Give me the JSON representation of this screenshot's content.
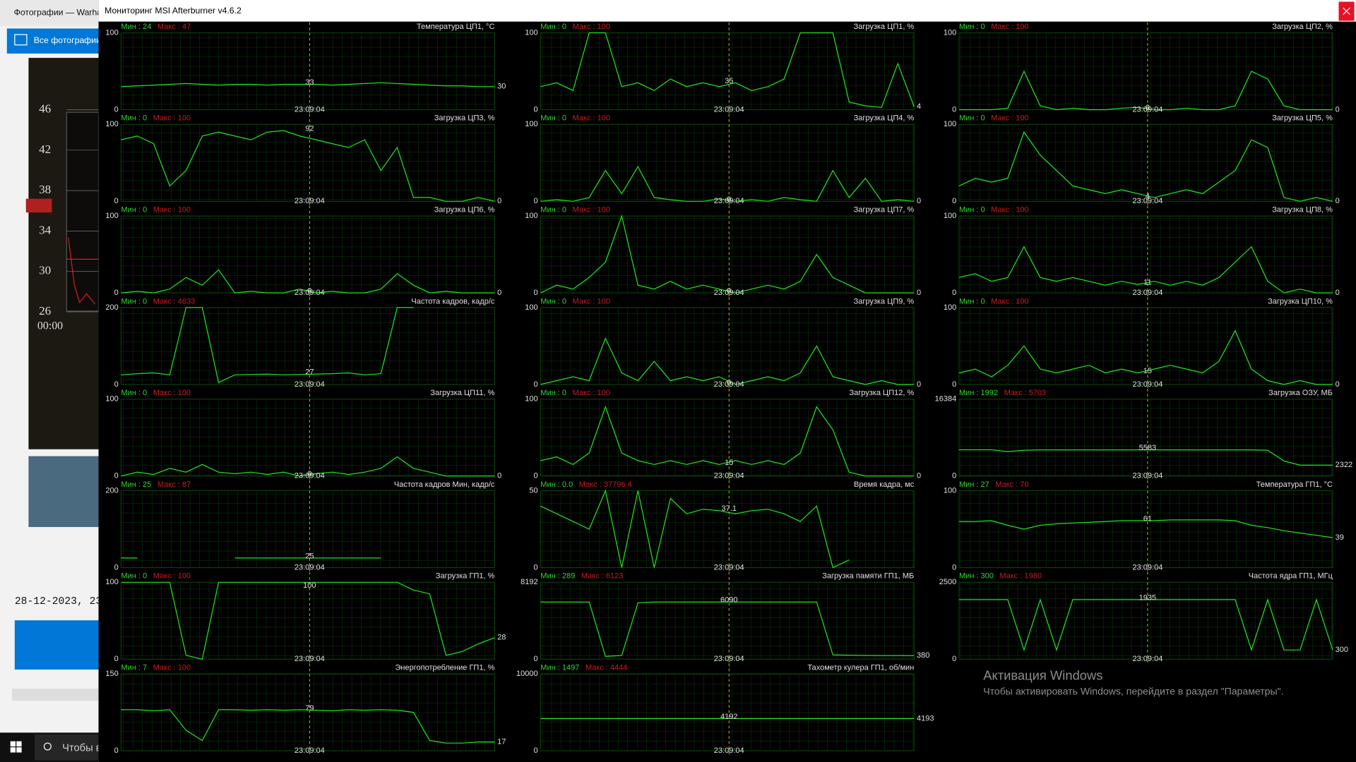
{
  "photos": {
    "window_title": "Фотографии — Warha",
    "nav": "Все фотографии",
    "chart_ticks": [
      "46",
      "42",
      "38",
      "34",
      "30",
      "26"
    ],
    "chart_time": "00:00",
    "date": "28-12-2023, 23:",
    "taskbar_search": "Чтобы в"
  },
  "window": {
    "title": "Мониторинг MSI Afterburner v4.6.2"
  },
  "activation": {
    "title": "Активация Windows",
    "text": "Чтобы активировать Windows, перейдите в раздел \"Параметры\"."
  },
  "panels": [
    {
      "min": "Мин : 24",
      "max": "Макс : 47",
      "title": "Температура ЦП1, °С",
      "ylim": [
        0,
        100
      ],
      "cursor": 33,
      "time": "23:09:04",
      "end": 30,
      "trace": [
        30,
        31,
        32,
        33,
        34,
        33,
        32,
        33,
        33,
        32,
        33,
        33,
        33,
        32,
        33,
        34,
        35,
        34,
        33,
        32,
        31,
        31,
        30,
        30
      ]
    },
    {
      "min": "Мин : 0",
      "max": "Макс : 100",
      "title": "Загрузка ЦП1, %",
      "ylim": [
        0,
        100
      ],
      "cursor": 35,
      "time": "23:09:04",
      "end": 4,
      "trace": [
        30,
        35,
        25,
        100,
        100,
        30,
        35,
        25,
        40,
        30,
        35,
        30,
        35,
        25,
        30,
        40,
        100,
        100,
        100,
        10,
        5,
        3,
        60,
        4
      ]
    },
    {
      "min": "Мин : 0",
      "max": "Макс : 100",
      "title": "Загрузка ЦП2, %",
      "ylim": [
        0,
        100
      ],
      "cursor": 0,
      "time": "23:09:04",
      "end": 0,
      "trace": [
        0,
        0,
        0,
        2,
        50,
        5,
        0,
        2,
        0,
        0,
        2,
        3,
        0,
        0,
        2,
        0,
        0,
        5,
        50,
        40,
        5,
        0,
        0,
        0
      ]
    },
    {
      "min": "Мин : 0",
      "max": "Макс : 100",
      "title": "Загрузка ЦП3, %",
      "ylim": [
        0,
        100
      ],
      "cursor": 92,
      "time": "23:09:04",
      "end": 0,
      "trace": [
        80,
        85,
        75,
        20,
        40,
        85,
        90,
        85,
        80,
        90,
        92,
        85,
        80,
        75,
        70,
        80,
        40,
        70,
        5,
        5,
        0,
        0,
        5,
        0
      ]
    },
    {
      "min": "Мин : 0",
      "max": "Макс : 100",
      "title": "Загрузка ЦП4, %",
      "ylim": [
        0,
        100
      ],
      "cursor": 0,
      "time": "23:09:04",
      "end": 0,
      "trace": [
        0,
        2,
        0,
        5,
        40,
        10,
        45,
        5,
        2,
        0,
        0,
        3,
        0,
        2,
        0,
        5,
        2,
        0,
        40,
        5,
        30,
        0,
        2,
        0
      ]
    },
    {
      "min": "Мин : 0",
      "max": "Макс : 100",
      "title": "Загрузка ЦП5, %",
      "ylim": [
        0,
        100
      ],
      "cursor": 4,
      "time": "23:09:04",
      "end": 0,
      "trace": [
        20,
        30,
        25,
        30,
        90,
        60,
        40,
        20,
        15,
        10,
        15,
        10,
        5,
        10,
        15,
        10,
        25,
        40,
        80,
        70,
        5,
        0,
        5,
        0
      ]
    },
    {
      "min": "Мин : 0",
      "max": "Макс : 100",
      "title": "Загрузка ЦП6, %",
      "ylim": [
        0,
        100
      ],
      "cursor": 0,
      "time": "23:09:04",
      "end": 0,
      "trace": [
        0,
        2,
        0,
        5,
        20,
        10,
        30,
        0,
        2,
        0,
        0,
        5,
        0,
        2,
        0,
        0,
        5,
        25,
        10,
        0,
        2,
        0,
        0,
        0
      ]
    },
    {
      "min": "Мин : 0",
      "max": "Макс : 100",
      "title": "Загрузка ЦП7, %",
      "ylim": [
        0,
        100
      ],
      "cursor": 0,
      "time": "23:09:04",
      "end": 0,
      "trace": [
        0,
        10,
        5,
        20,
        40,
        100,
        10,
        5,
        15,
        5,
        10,
        5,
        0,
        5,
        10,
        5,
        15,
        50,
        20,
        10,
        0,
        0,
        0,
        0
      ]
    },
    {
      "min": "Мин : 0",
      "max": "Макс : 100",
      "title": "Загрузка ЦП8, %",
      "ylim": [
        0,
        100
      ],
      "cursor": 11,
      "time": "23:09:04",
      "end": 0,
      "trace": [
        20,
        25,
        15,
        20,
        60,
        20,
        15,
        20,
        15,
        10,
        15,
        11,
        15,
        10,
        15,
        10,
        20,
        40,
        60,
        15,
        0,
        5,
        0,
        0
      ]
    },
    {
      "min": "Мин : 0",
      "max": "Макс : 4633",
      "title": "Частота кадров, кадр/с",
      "ylim": [
        0,
        200
      ],
      "cursor": 27,
      "time": "23:09:04",
      "trace": [
        25,
        28,
        30,
        25,
        200,
        200,
        5,
        25,
        26,
        27,
        25,
        26,
        27,
        28,
        30,
        25,
        28,
        200,
        200,
        null,
        null,
        null,
        null,
        null
      ]
    },
    {
      "min": "Мин : 0",
      "max": "Макс : 100",
      "title": "Загрузка ЦП9, %",
      "ylim": [
        0,
        100
      ],
      "cursor": 0,
      "time": "23:09:04",
      "end": 0,
      "trace": [
        0,
        5,
        10,
        5,
        60,
        15,
        5,
        30,
        5,
        10,
        5,
        10,
        0,
        5,
        10,
        5,
        15,
        50,
        10,
        5,
        0,
        5,
        0,
        0
      ]
    },
    {
      "min": "Мин : 0",
      "max": "Макс : 100",
      "title": "Загрузка ЦП10, %",
      "ylim": [
        0,
        100
      ],
      "cursor": 15,
      "time": "23:09:04",
      "end": 0,
      "trace": [
        15,
        20,
        10,
        25,
        50,
        20,
        15,
        20,
        25,
        15,
        20,
        15,
        20,
        25,
        20,
        15,
        30,
        70,
        20,
        5,
        0,
        5,
        0,
        0
      ]
    },
    {
      "min": "Мин : 0",
      "max": "Макс : 100",
      "title": "Загрузка ЦП11, %",
      "ylim": [
        0,
        100
      ],
      "cursor": 0,
      "time": "23:09:04",
      "end": 0,
      "trace": [
        0,
        5,
        2,
        10,
        5,
        15,
        5,
        3,
        5,
        2,
        5,
        0,
        3,
        5,
        2,
        5,
        10,
        25,
        10,
        5,
        0,
        0,
        0,
        0
      ]
    },
    {
      "min": "Мин : 0",
      "max": "Макс : 100",
      "title": "Загрузка ЦП12, %",
      "ylim": [
        0,
        100
      ],
      "cursor": 15,
      "time": "23:09:04",
      "end": 0,
      "trace": [
        20,
        25,
        15,
        30,
        90,
        30,
        20,
        15,
        20,
        15,
        20,
        15,
        20,
        15,
        20,
        15,
        30,
        90,
        60,
        5,
        0,
        0,
        0,
        0
      ]
    },
    {
      "min": "Мин : 1992",
      "max": "Макс : 5703",
      "title": "Загрузка ОЗУ, МБ",
      "ylim": [
        0,
        16384
      ],
      "cursor": 5583,
      "time": "23:09:04",
      "end": 2322,
      "trace": [
        5600,
        5600,
        5600,
        5200,
        5500,
        5583,
        5583,
        5583,
        5583,
        5583,
        5583,
        5583,
        5583,
        5583,
        5583,
        5583,
        5583,
        5583,
        5583,
        5500,
        3200,
        2322,
        2322,
        2322
      ]
    },
    {
      "min": "Мин : 25",
      "max": "Макс : 87",
      "title": "Частота кадров Мин, кадр/с",
      "ylim": [
        0,
        200
      ],
      "cursor": 25,
      "time": "23:09:04",
      "trace": [
        25,
        25,
        null,
        null,
        null,
        null,
        null,
        25,
        25,
        25,
        25,
        25,
        25,
        25,
        25,
        25,
        25,
        null,
        null,
        null,
        null,
        null,
        null,
        null
      ]
    },
    {
      "min": "Мин : 0.0",
      "max": "Макс : 37796.4",
      "title": "Время кадра, мс",
      "ylim": [
        0,
        50
      ],
      "cursor": 37.1,
      "time": "23:09:04",
      "trace": [
        40,
        35,
        30,
        25,
        50,
        0,
        50,
        0,
        45,
        35,
        38,
        37,
        35,
        37,
        38,
        35,
        30,
        40,
        0,
        5,
        null,
        null,
        null,
        null
      ]
    },
    {
      "min": "Мин : 27",
      "max": "Макс : 70",
      "title": "Температура ГП1, °С",
      "ylim": [
        0,
        100
      ],
      "cursor": 61,
      "time": "23:09:04",
      "end": 39,
      "trace": [
        60,
        60,
        61,
        55,
        50,
        55,
        57,
        58,
        59,
        60,
        61,
        61,
        61,
        62,
        62,
        62,
        62,
        61,
        55,
        52,
        48,
        45,
        42,
        39
      ]
    },
    {
      "min": "Мин : 0",
      "max": "Макс : 100",
      "title": "Загрузка ГП1, %",
      "ylim": [
        0,
        100
      ],
      "cursor": 100,
      "time": "23:09:04",
      "end": 28,
      "trace": [
        100,
        100,
        100,
        100,
        5,
        0,
        100,
        100,
        100,
        100,
        100,
        100,
        100,
        100,
        100,
        100,
        100,
        100,
        90,
        85,
        5,
        10,
        20,
        28
      ]
    },
    {
      "min": "Мин : 289",
      "max": "Макс : 6123",
      "title": "Загрузка памяти ГП1, МБ",
      "ylim": [
        0,
        8192
      ],
      "cursor": 6090,
      "time": "23:09:04",
      "end": 380,
      "trace": [
        6090,
        6090,
        6090,
        6090,
        300,
        400,
        6000,
        6090,
        6090,
        6090,
        6090,
        6090,
        6090,
        6090,
        6090,
        6090,
        6090,
        6090,
        450,
        420,
        400,
        390,
        385,
        380
      ]
    },
    {
      "min": "Мин : 300",
      "max": "Макс : 1980",
      "title": "Частота ядра ГП1, МГц",
      "ylim": [
        0,
        2500
      ],
      "cursor": 1935,
      "time": "23:09:04",
      "end": 300,
      "trace": [
        1935,
        1935,
        1935,
        1935,
        300,
        1935,
        300,
        1935,
        1935,
        1935,
        1935,
        1935,
        1935,
        1935,
        1935,
        1935,
        1935,
        1935,
        300,
        1935,
        300,
        300,
        1935,
        300
      ]
    },
    {
      "min": "Мин : 7",
      "max": "Макс : 100",
      "title": "Энергопотребление ГП1, %",
      "ylim": [
        0,
        150
      ],
      "cursor": 79,
      "time": "23:09:04",
      "end": 17,
      "trace": [
        80,
        80,
        78,
        80,
        40,
        20,
        80,
        80,
        79,
        80,
        79,
        80,
        79,
        78,
        80,
        79,
        80,
        79,
        75,
        20,
        15,
        15,
        17,
        17
      ]
    },
    {
      "min": "Мин : 1497",
      "max": "Макс : 4444",
      "title": "Тахометр кулера ГП1, об/мин",
      "ylim": [
        0,
        10000
      ],
      "cursor": 4192,
      "time": "23:09:04",
      "end": 4193,
      "trace": [
        4192,
        4192,
        4192,
        4192,
        4192,
        4192,
        4192,
        4192,
        4192,
        4192,
        4192,
        4192,
        4192,
        4192,
        4192,
        4192,
        4192,
        4192,
        4192,
        4192,
        4192,
        4192,
        4192,
        4193
      ]
    }
  ]
}
